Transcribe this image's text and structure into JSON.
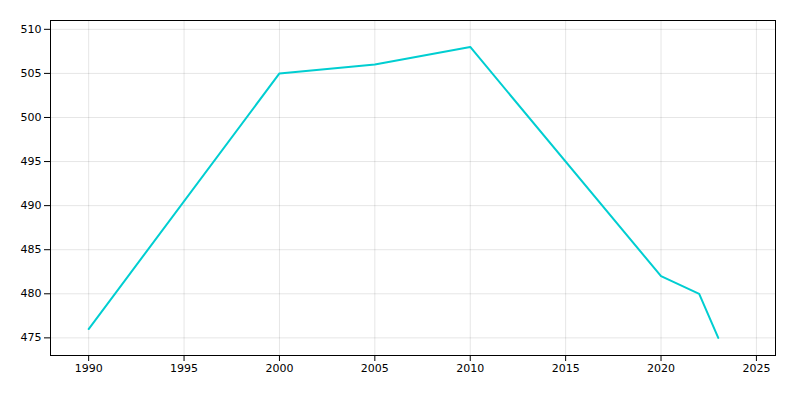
{
  "chart_data": {
    "type": "line",
    "x": [
      1990,
      2000,
      2005,
      2010,
      2020,
      2022,
      2023
    ],
    "values": [
      476,
      505,
      506,
      508,
      482,
      480,
      475
    ],
    "color": "#00CED1",
    "xlim": [
      1988,
      2026
    ],
    "ylim": [
      473,
      511
    ],
    "xticks": [
      1990,
      1995,
      2000,
      2005,
      2010,
      2015,
      2020,
      2025
    ],
    "yticks": [
      475,
      480,
      485,
      490,
      495,
      500,
      505,
      510
    ],
    "grid": true
  }
}
